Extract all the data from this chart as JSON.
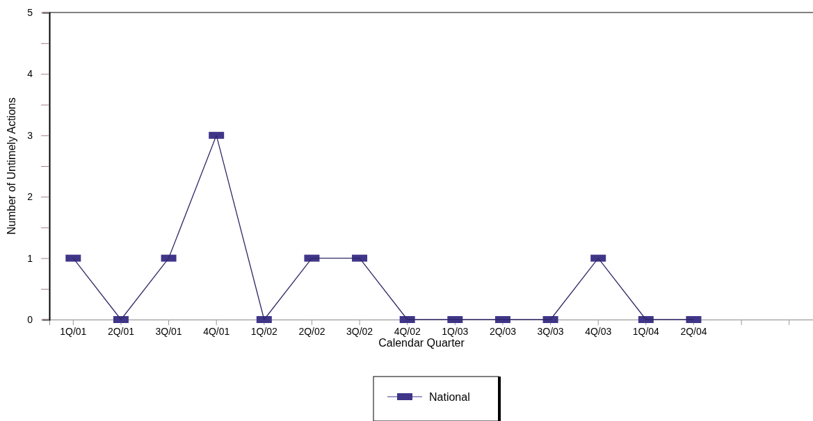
{
  "chart_data": {
    "type": "line",
    "xlabel": "Calendar Quarter",
    "ylabel": "Number of Untimely Actions",
    "categories": [
      "1Q/01",
      "2Q/01",
      "3Q/01",
      "4Q/01",
      "1Q/02",
      "2Q/02",
      "3Q/02",
      "4Q/02",
      "1Q/03",
      "2Q/03",
      "3Q/03",
      "4Q/03",
      "1Q/04",
      "2Q/04",
      null,
      null
    ],
    "series": [
      {
        "name": "National",
        "color": "#3f3689",
        "values": [
          1,
          0,
          1,
          3,
          0,
          1,
          1,
          0,
          0,
          0,
          0,
          1,
          0,
          0,
          null,
          null
        ]
      }
    ],
    "ylim": [
      0,
      5
    ],
    "yticks": [
      0,
      {
        "value": 0.5,
        "label": null
      },
      1,
      {
        "value": 1.5,
        "label": null
      },
      2,
      {
        "value": 2.5,
        "label": null
      },
      3,
      {
        "value": 3.5,
        "label": null
      },
      4,
      {
        "value": 4.5,
        "label": null
      },
      5
    ],
    "grid": false,
    "legend": "bottom",
    "marker": "square",
    "line_style": "solid"
  }
}
